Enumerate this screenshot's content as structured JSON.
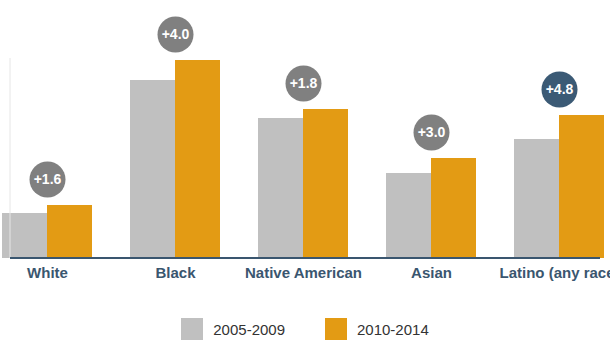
{
  "chart_data": {
    "type": "bar",
    "categories": [
      "White",
      "Black",
      "Native American",
      "Asian",
      "Latino (any race)"
    ],
    "series": [
      {
        "name": "2005-2009",
        "color": "#c0c0c0",
        "values": [
          9.0,
          35.6,
          28.0,
          17.0,
          23.8
        ]
      },
      {
        "name": "2010-2014",
        "color": "#e39b14",
        "values": [
          10.6,
          39.6,
          29.8,
          20.0,
          28.6
        ]
      }
    ],
    "annotations": [
      {
        "category": "White",
        "text": "+1.6",
        "color": "#808080"
      },
      {
        "category": "Black",
        "text": "+4.0",
        "color": "#808080"
      },
      {
        "category": "Native American",
        "text": "+1.8",
        "color": "#808080"
      },
      {
        "category": "Asian",
        "text": "+3.0",
        "color": "#808080"
      },
      {
        "category": "Latino (any race)",
        "text": "+4.8",
        "color": "#3b5a75"
      }
    ],
    "ylim": [
      0,
      40
    ],
    "tick_labels": "x",
    "grid": false,
    "legend": "bottom"
  }
}
